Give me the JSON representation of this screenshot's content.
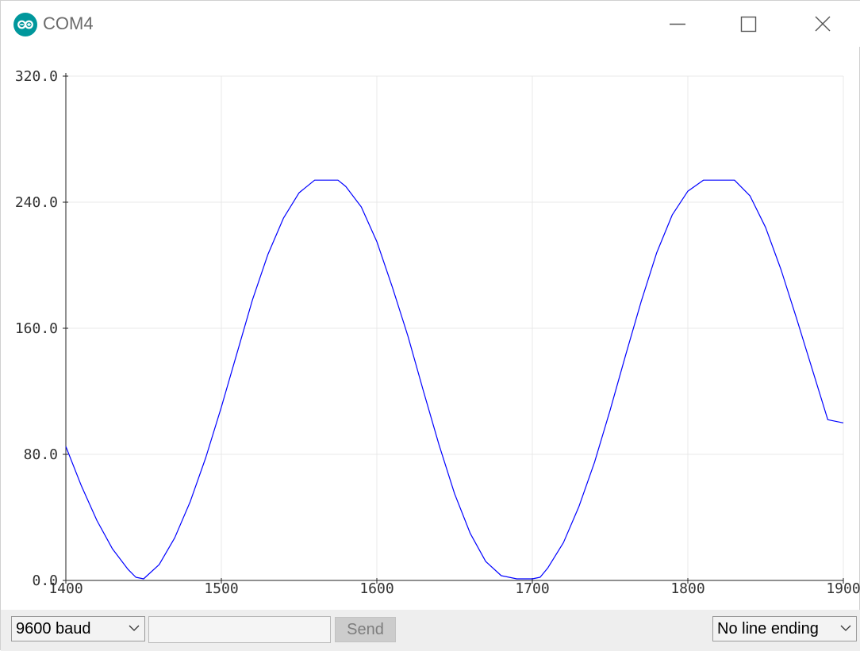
{
  "window": {
    "title": "COM4",
    "icon": "arduino-logo-icon",
    "controls": [
      "minimize-icon",
      "maximize-icon",
      "close-icon"
    ]
  },
  "chart_data": {
    "type": "line",
    "title": "",
    "xlabel": "",
    "ylabel": "",
    "xlim": [
      1400,
      1900
    ],
    "ylim": [
      0,
      320
    ],
    "x_ticks": [
      "1400",
      "1500",
      "1600",
      "1700",
      "1800",
      "1900"
    ],
    "y_ticks": [
      "0.0",
      "80.0",
      "160.0",
      "240.0",
      "320.0"
    ],
    "grid": true,
    "series": [
      {
        "color": "#0000ff",
        "x": [
          1400,
          1410,
          1420,
          1430,
          1440,
          1445,
          1450,
          1460,
          1470,
          1480,
          1490,
          1500,
          1510,
          1520,
          1530,
          1540,
          1550,
          1560,
          1570,
          1575,
          1580,
          1590,
          1600,
          1610,
          1620,
          1630,
          1640,
          1650,
          1660,
          1670,
          1680,
          1690,
          1700,
          1705,
          1710,
          1720,
          1730,
          1740,
          1750,
          1760,
          1770,
          1780,
          1790,
          1800,
          1810,
          1820,
          1825,
          1830,
          1840,
          1850,
          1860,
          1870,
          1880,
          1890,
          1900
        ],
        "y": [
          85,
          60,
          38,
          20,
          7,
          2,
          1,
          10,
          27,
          50,
          78,
          110,
          144,
          178,
          207,
          230,
          246,
          254,
          254,
          254,
          250,
          237,
          215,
          186,
          155,
          120,
          86,
          55,
          30,
          12,
          3,
          1,
          1,
          2,
          8,
          24,
          47,
          75,
          108,
          143,
          177,
          208,
          232,
          247,
          254,
          254,
          254,
          254,
          244,
          224,
          197,
          166,
          134,
          102,
          100
        ]
      }
    ]
  },
  "controls": {
    "baud": "9600 baud",
    "send_input_value": "",
    "send_label": "Send",
    "line_ending": "No line ending"
  }
}
